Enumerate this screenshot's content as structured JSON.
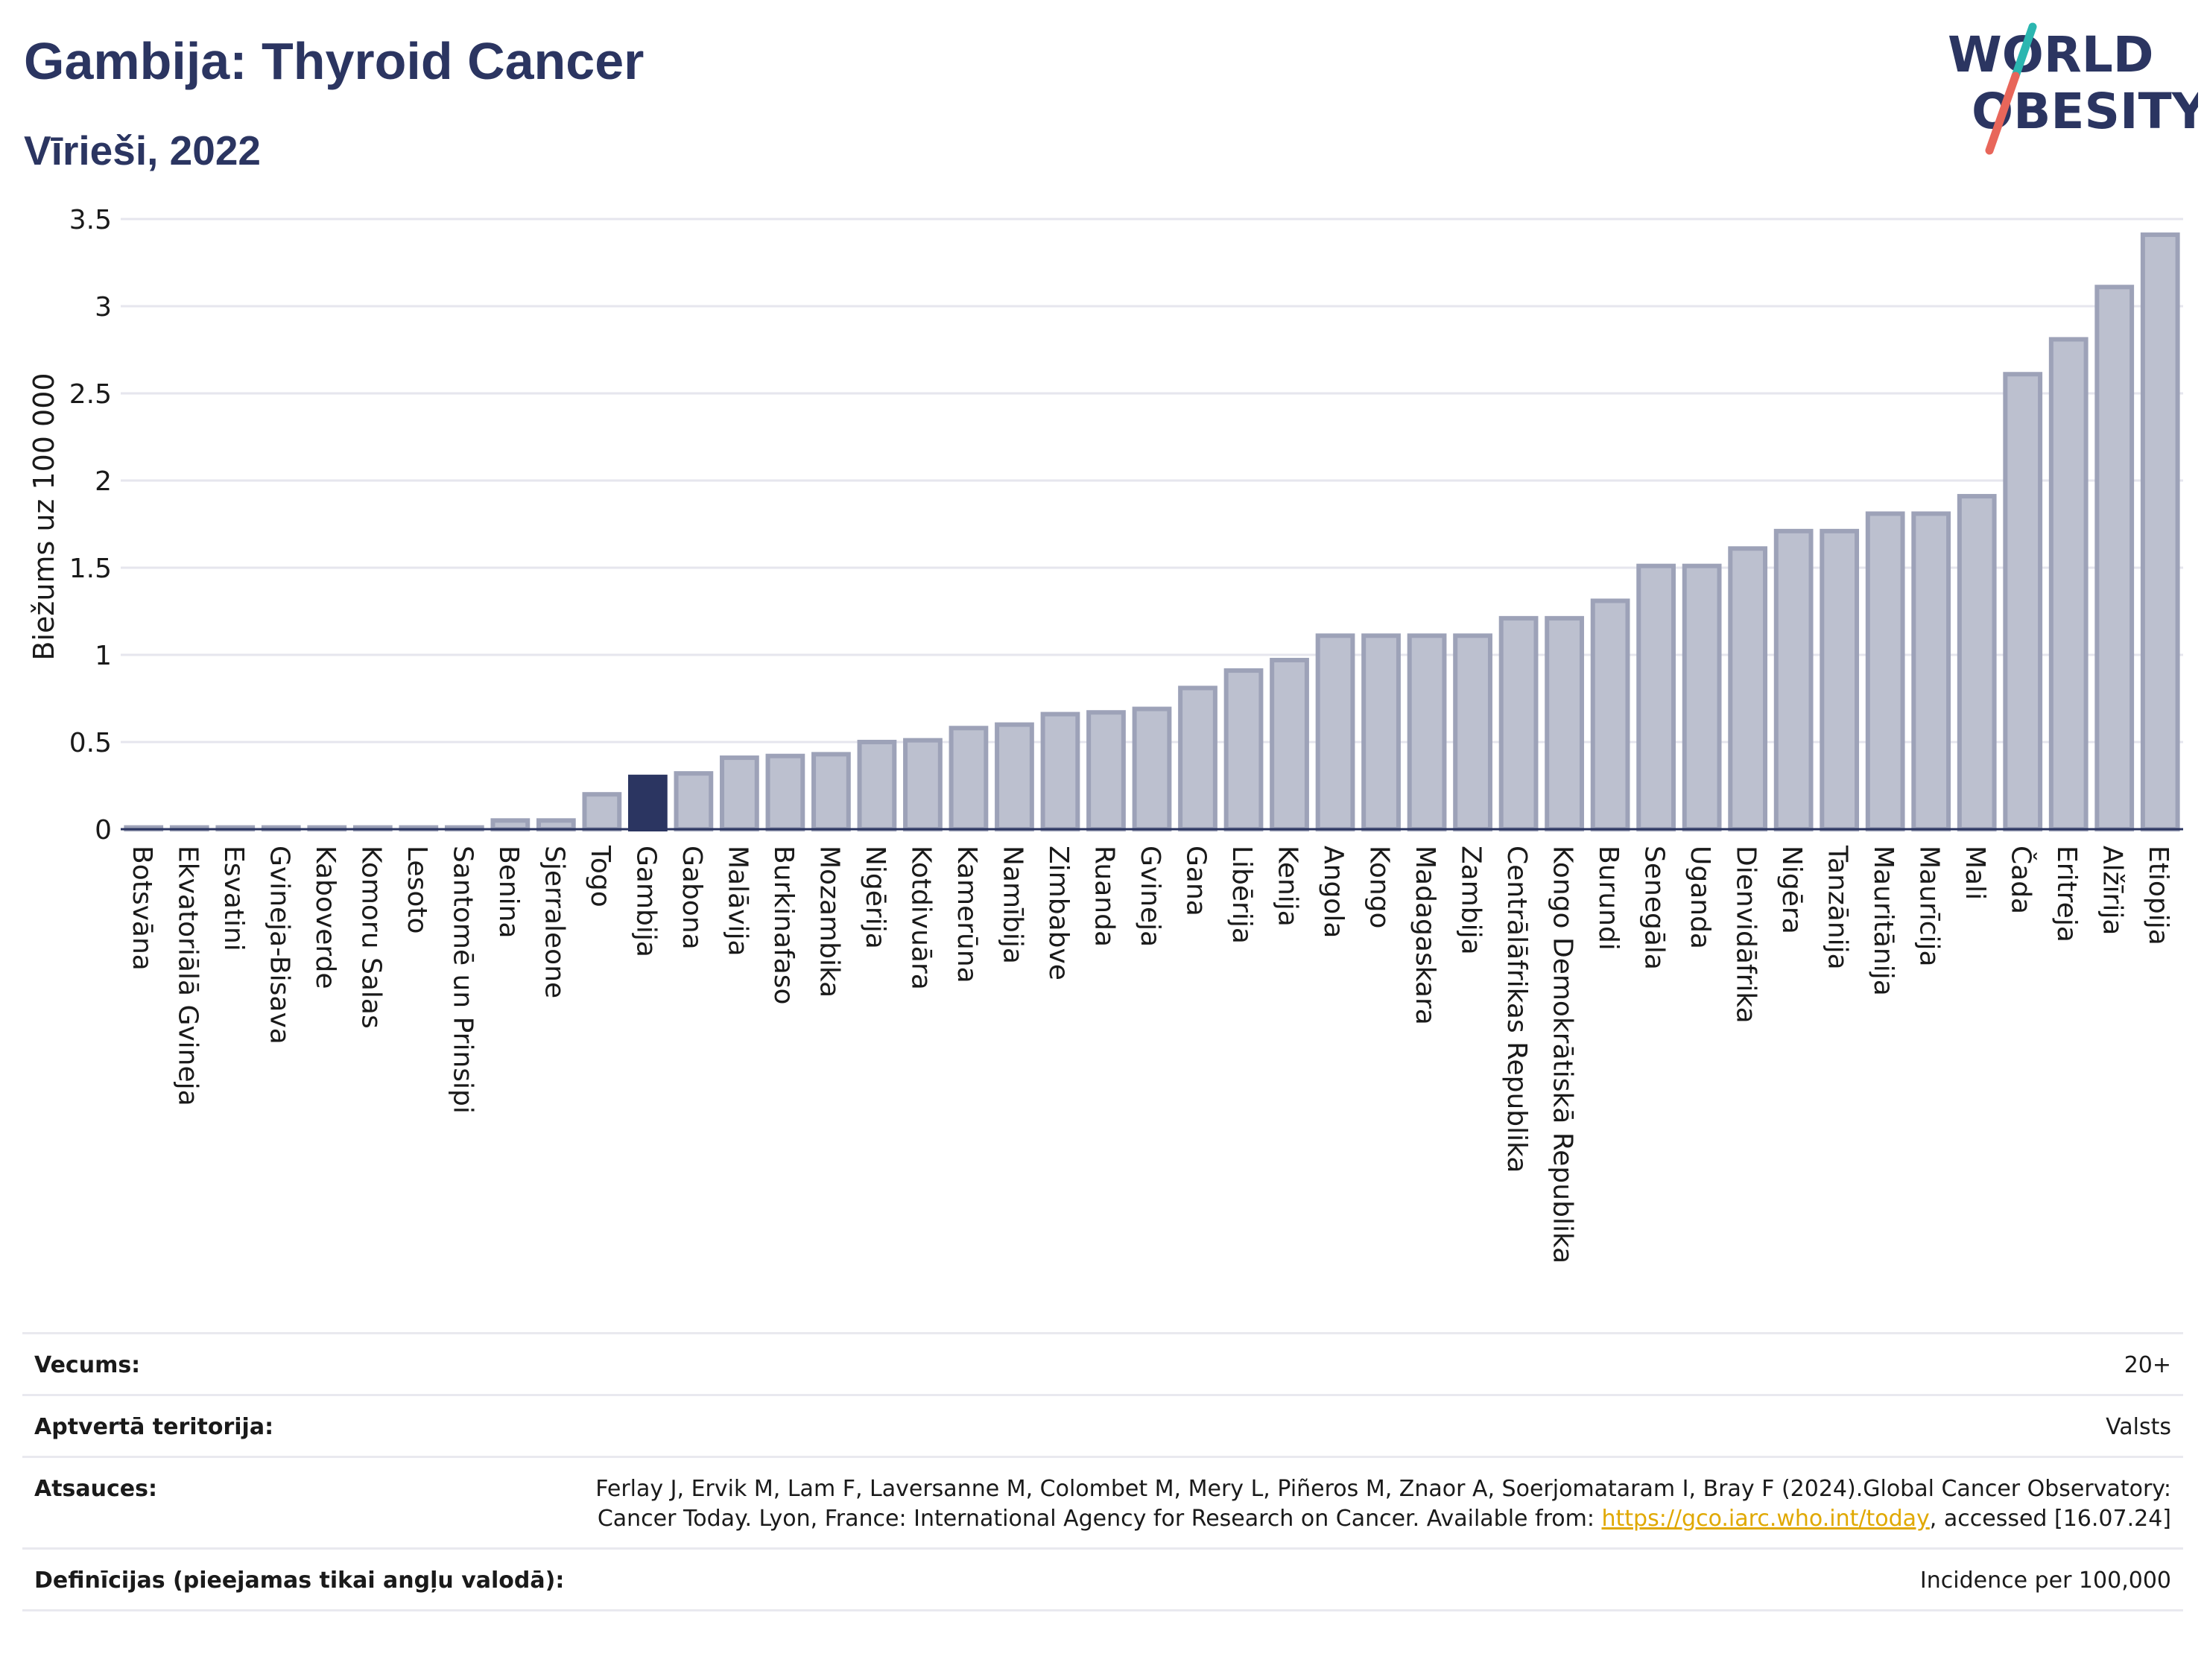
{
  "header": {
    "title": "Gambija: Thyroid Cancer",
    "subtitle": "Vīrieši, 2022"
  },
  "logo": {
    "line1": "WORLD",
    "line2": "OBESITY",
    "accent_colors": [
      "#2bb6b0",
      "#e8665a"
    ]
  },
  "colors": {
    "bar": "#bcc0cf",
    "bar_stroke": "#9da2b8",
    "highlight": "#2b3561",
    "grid": "#e6e6ee",
    "axis": "#2b3561"
  },
  "chart_data": {
    "type": "bar",
    "title": "Gambija: Thyroid Cancer",
    "subtitle": "Vīrieši, 2022",
    "xlabel": "",
    "ylabel": "Biežums uz 100 000",
    "ylim": [
      0,
      3.5
    ],
    "yticks": [
      0,
      0.5,
      1,
      1.5,
      2,
      2.5,
      3,
      3.5
    ],
    "ytick_labels": [
      "0",
      "0.5",
      "1",
      "1.5",
      "2",
      "2.5",
      "3",
      "3.5"
    ],
    "grid": true,
    "highlight": "Gambija",
    "categories": [
      "Botsvāna",
      "Ekvatoriālā Gvineja",
      "Esvatini",
      "Gvineja-Bisava",
      "Kaboverde",
      "Komoru Salas",
      "Lesoto",
      "Santomē un Prinsipi",
      "Benina",
      "Sjerraleone",
      "Togo",
      "Gambija",
      "Gabona",
      "Malāvija",
      "Burkinafaso",
      "Mozambika",
      "Nigērija",
      "Kotdivuāra",
      "Kamerūna",
      "Namībija",
      "Zimbabve",
      "Ruanda",
      "Gvineja",
      "Gana",
      "Libērija",
      "Kenija",
      "Angola",
      "Kongo",
      "Madagaskara",
      "Zambija",
      "Centrālāfrikas Republika",
      "Kongo Demokrātiskā Republika",
      "Burundi",
      "Senegāla",
      "Uganda",
      "Dienvidāfrika",
      "Nigēra",
      "Tanzānija",
      "Mauritānija",
      "Maurīcija",
      "Mali",
      "Čada",
      "Eritreja",
      "Alžīrija",
      "Etiopija"
    ],
    "values": [
      0.01,
      0.01,
      0.01,
      0.01,
      0.01,
      0.01,
      0.01,
      0.01,
      0.05,
      0.05,
      0.2,
      0.3,
      0.32,
      0.41,
      0.42,
      0.43,
      0.5,
      0.51,
      0.58,
      0.6,
      0.66,
      0.67,
      0.69,
      0.81,
      0.91,
      0.97,
      1.11,
      1.11,
      1.11,
      1.11,
      1.21,
      1.21,
      1.31,
      1.51,
      1.51,
      1.61,
      1.71,
      1.71,
      1.81,
      1.81,
      1.91,
      2.61,
      2.81,
      3.11,
      3.41
    ]
  },
  "info": [
    {
      "label": "Vecums:",
      "value": "20+"
    },
    {
      "label": "Aptvertā teritorija:",
      "value": "Valsts"
    },
    {
      "label": "Atsauces:",
      "value_before": "Ferlay J, Ervik M, Lam F, Laversanne M, Colombet M, Mery L, Piñeros M, Znaor A, Soerjomataram I, Bray F (2024).Global Cancer Observatory: Cancer Today. Lyon, France: International Agency for Research on Cancer. Available from: ",
      "link": "https://gco.iarc.who.int/today",
      "value_after": ", accessed [16.07.24]"
    },
    {
      "label": "Definīcijas (pieejamas tikai angļu valodā):",
      "value": "Incidence per 100,000"
    }
  ]
}
